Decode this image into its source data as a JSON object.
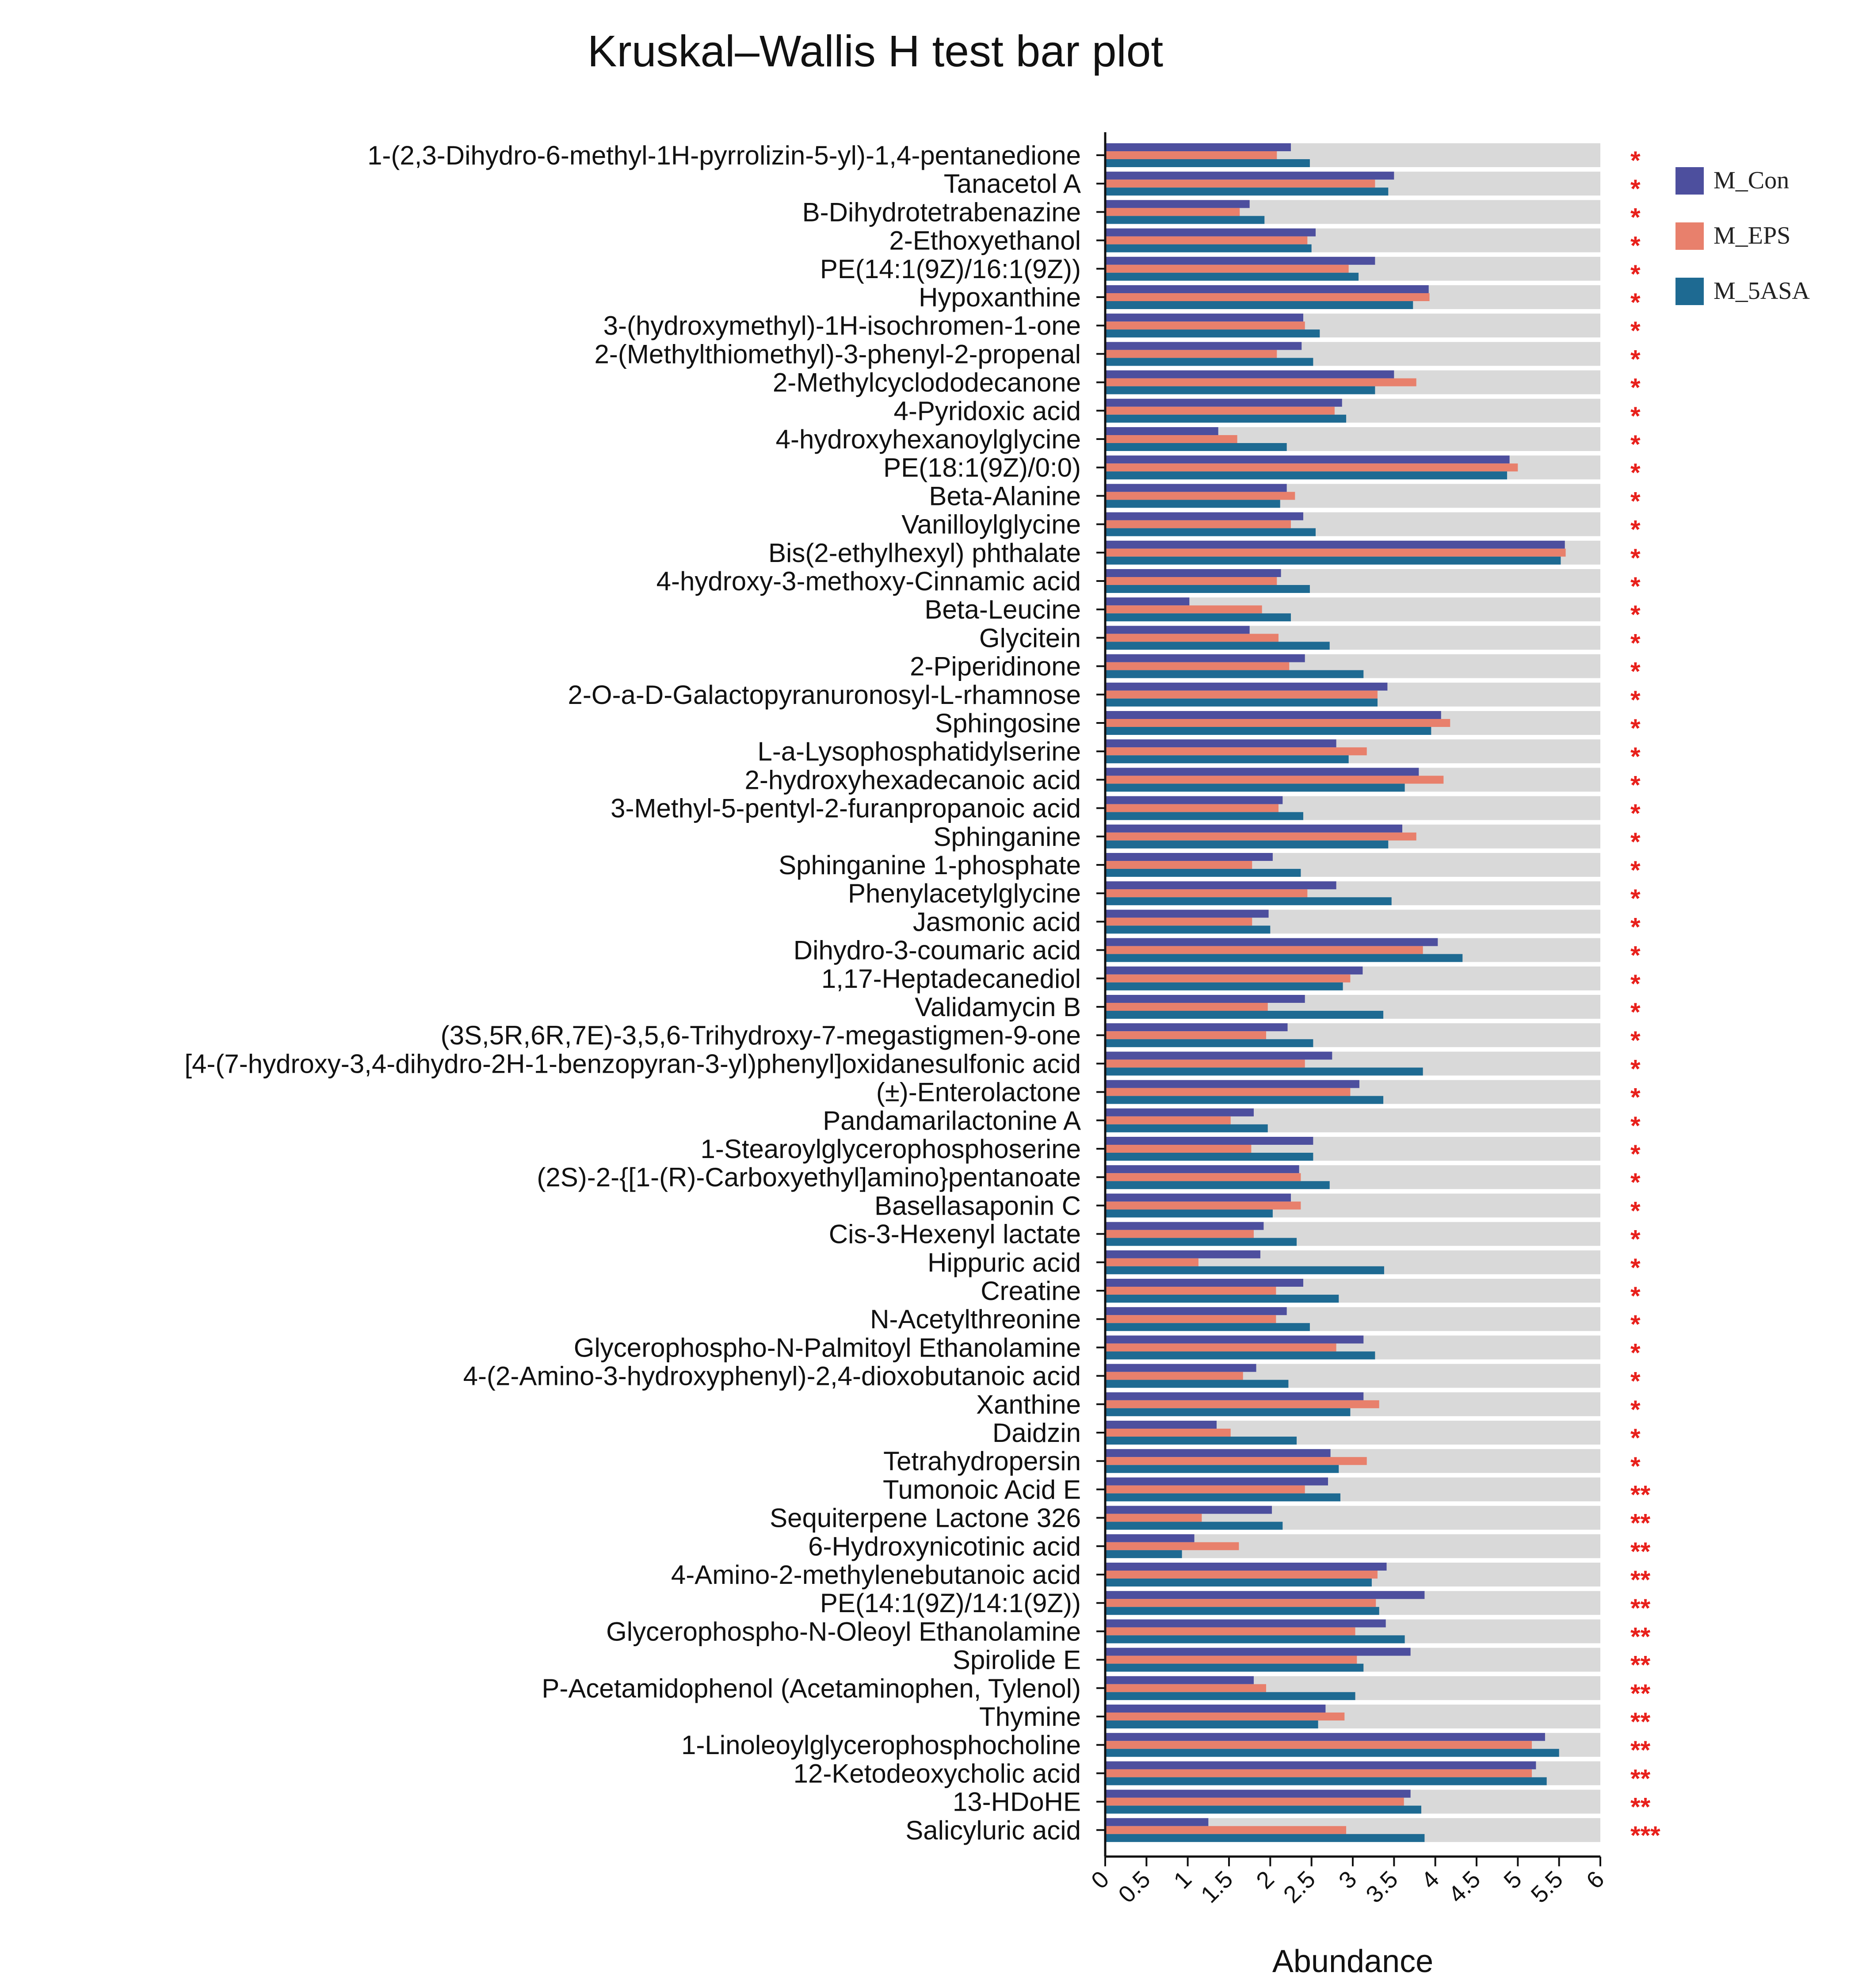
{
  "chart_data": {
    "type": "bar",
    "orientation": "horizontal",
    "title": "Kruskal–Wallis H test  bar plot",
    "xlabel": "Abundance",
    "ylabel": "",
    "xlim": [
      0,
      6
    ],
    "ticks": [
      "0",
      "0.5",
      "1",
      "1.5",
      "2",
      "2.5",
      "3",
      "3.5",
      "4",
      "4.5",
      "5",
      "5.5",
      "6"
    ],
    "tick_values": [
      0,
      0.5,
      1,
      1.5,
      2,
      2.5,
      3,
      3.5,
      4,
      4.5,
      5,
      5.5,
      6
    ],
    "legend_position": "top-right",
    "categories": [
      "1-(2,3-Dihydro-6-methyl-1H-pyrrolizin-5-yl)-1,4-pentanedione",
      "Tanacetol A",
      "B-Dihydrotetrabenazine",
      "2-Ethoxyethanol",
      "PE(14:1(9Z)/16:1(9Z))",
      "Hypoxanthine",
      "3-(hydroxymethyl)-1H-isochromen-1-one",
      "2-(Methylthiomethyl)-3-phenyl-2-propenal",
      "2-Methylcyclododecanone",
      "4-Pyridoxic acid",
      "4-hydroxyhexanoylglycine",
      "PE(18:1(9Z)/0:0)",
      "Beta-Alanine",
      "Vanilloylglycine",
      "Bis(2-ethylhexyl) phthalate",
      "4-hydroxy-3-methoxy-Cinnamic acid",
      "Beta-Leucine",
      "Glycitein",
      "2-Piperidinone",
      "2-O-a-D-Galactopyranuronosyl-L-rhamnose",
      "Sphingosine",
      "L-a-Lysophosphatidylserine",
      "2-hydroxyhexadecanoic acid",
      "3-Methyl-5-pentyl-2-furanpropanoic acid",
      "Sphinganine",
      "Sphinganine 1-phosphate",
      "Phenylacetylglycine",
      "Jasmonic acid",
      "Dihydro-3-coumaric acid",
      "1,17-Heptadecanediol",
      "Validamycin B",
      "(3S,5R,6R,7E)-3,5,6-Trihydroxy-7-megastigmen-9-one",
      "[4-(7-hydroxy-3,4-dihydro-2H-1-benzopyran-3-yl)phenyl]oxidanesulfonic acid",
      "(±)-Enterolactone",
      "Pandamarilactonine A",
      "1-Stearoylglycerophosphoserine",
      "(2S)-2-{[1-(R)-Carboxyethyl]amino}pentanoate",
      "Basellasaponin C",
      "Cis-3-Hexenyl lactate",
      "Hippuric acid",
      "Creatine",
      "N-Acetylthreonine",
      "Glycerophospho-N-Palmitoyl Ethanolamine",
      "4-(2-Amino-3-hydroxyphenyl)-2,4-dioxobutanoic acid",
      "Xanthine",
      "Daidzin",
      "Tetrahydropersin",
      "Tumonoic Acid E",
      "Sequiterpene Lactone 326",
      "6-Hydroxynicotinic acid",
      "4-Amino-2-methylenebutanoic acid",
      "PE(14:1(9Z)/14:1(9Z))",
      "Glycerophospho-N-Oleoyl Ethanolamine",
      "Spirolide E",
      "P-Acetamidophenol (Acetaminophen, Tylenol)",
      "Thymine",
      "1-Linoleoylglycerophosphocholine",
      "12-Ketodeoxycholic acid",
      "13-HDoHE",
      "Salicyluric acid"
    ],
    "significance": [
      "*",
      "*",
      "*",
      "*",
      "*",
      "*",
      "*",
      "*",
      "*",
      "*",
      "*",
      "*",
      "*",
      "*",
      "*",
      "*",
      "*",
      "*",
      "*",
      "*",
      "*",
      "*",
      "*",
      "*",
      "*",
      "*",
      "*",
      "*",
      "*",
      "*",
      "*",
      "*",
      "*",
      "*",
      "*",
      "*",
      "*",
      "*",
      "*",
      "*",
      "*",
      "*",
      "*",
      "*",
      "*",
      "*",
      "*",
      "**",
      "**",
      "**",
      "**",
      "**",
      "**",
      "**",
      "**",
      "**",
      "**",
      "**",
      "**",
      "***"
    ],
    "series": [
      {
        "name": "M_Con",
        "color": "#4d4f9e",
        "values": [
          2.25,
          3.5,
          1.75,
          2.55,
          3.27,
          3.92,
          2.4,
          2.38,
          3.5,
          2.87,
          1.37,
          4.9,
          2.2,
          2.4,
          5.57,
          2.13,
          1.02,
          1.75,
          2.42,
          3.42,
          4.07,
          2.8,
          3.8,
          2.15,
          3.6,
          2.03,
          2.8,
          1.98,
          4.03,
          3.12,
          2.42,
          2.21,
          2.75,
          3.08,
          1.8,
          2.52,
          2.35,
          2.25,
          1.92,
          1.88,
          2.4,
          2.2,
          3.13,
          1.83,
          3.13,
          1.35,
          2.73,
          2.7,
          2.02,
          1.08,
          3.41,
          3.87,
          3.4,
          3.7,
          1.8,
          2.67,
          5.33,
          5.22,
          3.7,
          1.25
        ]
      },
      {
        "name": "M_EPS",
        "color": "#e8806c",
        "values": [
          2.08,
          3.27,
          1.63,
          2.45,
          2.95,
          3.93,
          2.42,
          2.08,
          3.77,
          2.78,
          1.6,
          5.0,
          2.3,
          2.25,
          5.58,
          2.08,
          1.9,
          2.1,
          2.23,
          3.3,
          4.18,
          3.17,
          4.1,
          2.1,
          3.77,
          1.78,
          2.45,
          1.78,
          3.85,
          2.97,
          1.97,
          1.95,
          2.42,
          2.97,
          1.52,
          1.77,
          2.37,
          2.37,
          1.8,
          1.13,
          2.07,
          2.07,
          2.8,
          1.67,
          3.32,
          1.52,
          3.17,
          2.42,
          1.17,
          1.62,
          3.3,
          3.28,
          3.03,
          3.05,
          1.95,
          2.9,
          5.17,
          5.17,
          3.62,
          2.92
        ]
      },
      {
        "name": "M_5ASA",
        "color": "#1e6a92",
        "values": [
          2.48,
          3.43,
          1.93,
          2.5,
          3.07,
          3.73,
          2.6,
          2.52,
          3.27,
          2.92,
          2.2,
          4.87,
          2.12,
          2.55,
          5.52,
          2.48,
          2.25,
          2.72,
          3.13,
          3.3,
          3.95,
          2.95,
          3.63,
          2.4,
          3.43,
          2.37,
          3.47,
          2.0,
          4.33,
          2.88,
          3.37,
          2.52,
          3.85,
          3.37,
          1.97,
          2.52,
          2.72,
          2.03,
          2.32,
          3.38,
          2.83,
          2.48,
          3.27,
          2.22,
          2.97,
          2.32,
          2.83,
          2.85,
          2.15,
          0.93,
          3.23,
          3.32,
          3.63,
          3.13,
          3.03,
          2.58,
          5.5,
          5.35,
          3.83,
          3.87
        ]
      }
    ]
  }
}
